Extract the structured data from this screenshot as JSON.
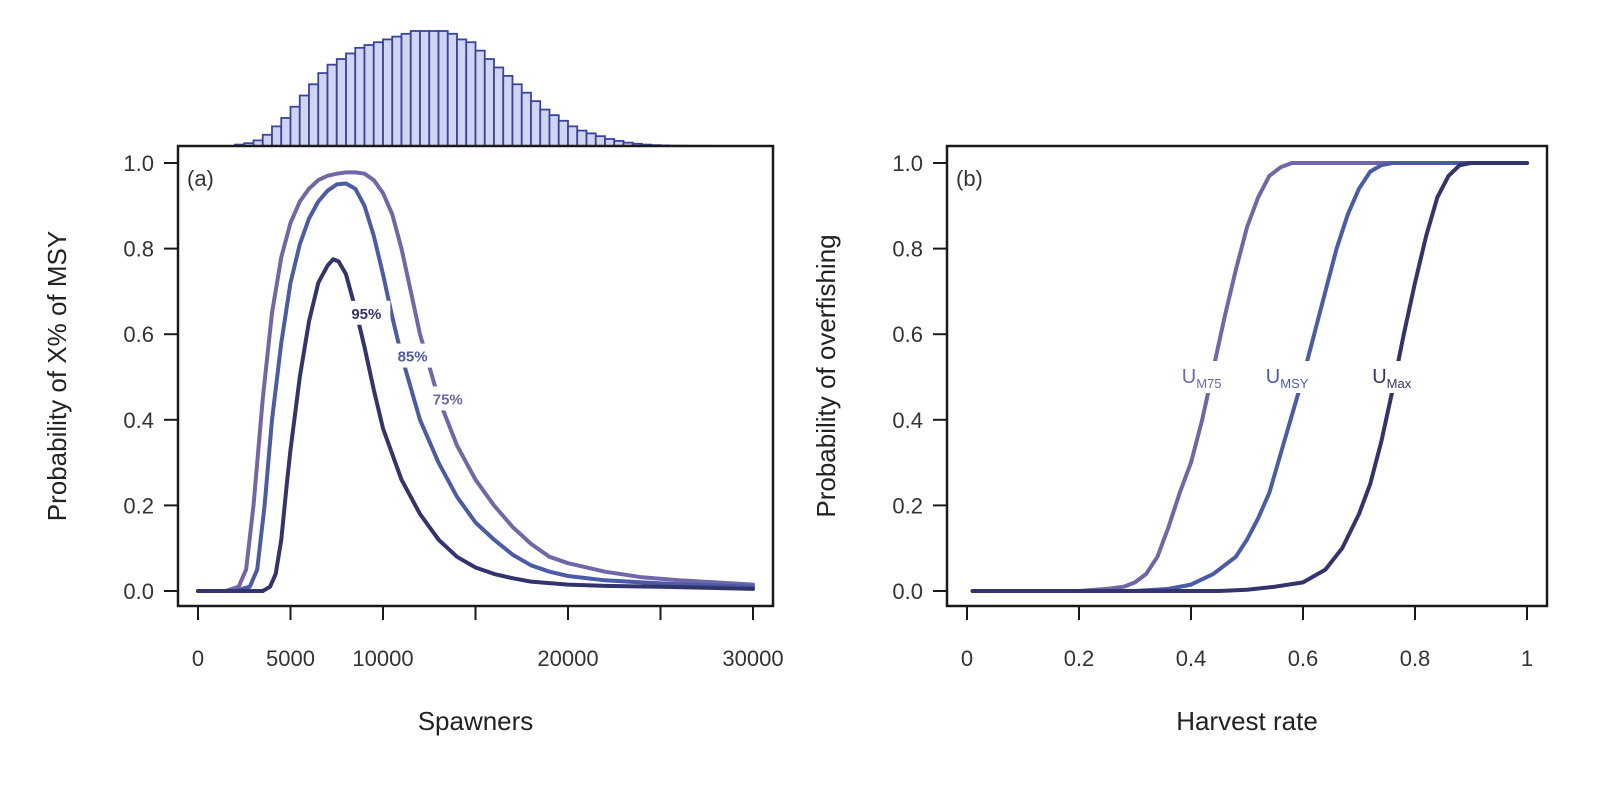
{
  "colors": {
    "c95": "#33336e",
    "c85": "#4a5ba8",
    "c75": "#7266a9",
    "hist_fill": "#cfd5ef",
    "hist_stroke": "#3a44a0",
    "frame": "#1a1a1a"
  },
  "chart_data": [
    {
      "type": "line",
      "panel": "(a)",
      "xlabel": "Spawners",
      "ylabel": "Probability of X% of MSY",
      "xlim": [
        0,
        30000
      ],
      "ylim": [
        0,
        1
      ],
      "xticks": [
        0,
        5000,
        10000,
        15000,
        20000,
        25000,
        30000
      ],
      "xtick_labels": [
        "0",
        "5000",
        "10000",
        "",
        "20000",
        "",
        "30000"
      ],
      "yticks": [
        0,
        0.2,
        0.4,
        0.6,
        0.8,
        1.0
      ],
      "ytick_labels": [
        "0.0",
        "0.2",
        "0.4",
        "0.6",
        "0.8",
        "1.0"
      ],
      "series": [
        {
          "name": "75%",
          "color_key": "c75",
          "x": [
            0,
            1500,
            2200,
            2600,
            3000,
            3500,
            4000,
            4500,
            5000,
            5500,
            6000,
            6500,
            7000,
            7500,
            8000,
            8500,
            9000,
            9500,
            10000,
            10500,
            11000,
            11500,
            12000,
            13000,
            14000,
            15000,
            16000,
            17000,
            18000,
            19000,
            20000,
            22000,
            24000,
            26000,
            28000,
            30000
          ],
          "y": [
            0,
            0,
            0.01,
            0.05,
            0.2,
            0.45,
            0.65,
            0.78,
            0.86,
            0.91,
            0.94,
            0.96,
            0.97,
            0.975,
            0.978,
            0.978,
            0.975,
            0.96,
            0.93,
            0.88,
            0.8,
            0.7,
            0.6,
            0.45,
            0.34,
            0.26,
            0.2,
            0.15,
            0.11,
            0.08,
            0.065,
            0.045,
            0.032,
            0.025,
            0.02,
            0.015
          ]
        },
        {
          "name": "85%",
          "color_key": "c85",
          "x": [
            0,
            2000,
            2800,
            3200,
            3600,
            4000,
            4500,
            5000,
            5500,
            6000,
            6500,
            7000,
            7500,
            8000,
            8500,
            9000,
            9500,
            10000,
            10500,
            11000,
            12000,
            13000,
            14000,
            15000,
            16000,
            17000,
            18000,
            19000,
            20000,
            22000,
            24000,
            26000,
            28000,
            30000
          ],
          "y": [
            0,
            0,
            0.01,
            0.05,
            0.2,
            0.4,
            0.58,
            0.72,
            0.81,
            0.87,
            0.91,
            0.935,
            0.95,
            0.952,
            0.94,
            0.9,
            0.83,
            0.74,
            0.64,
            0.55,
            0.4,
            0.3,
            0.22,
            0.16,
            0.12,
            0.085,
            0.06,
            0.045,
            0.035,
            0.025,
            0.02,
            0.016,
            0.013,
            0.01
          ]
        },
        {
          "name": "95%",
          "color_key": "c95",
          "x": [
            0,
            3500,
            3900,
            4200,
            4500,
            4800,
            5000,
            5500,
            6000,
            6500,
            7000,
            7300,
            7600,
            8000,
            8500,
            9000,
            9500,
            10000,
            11000,
            12000,
            13000,
            14000,
            15000,
            16000,
            17000,
            18000,
            20000,
            22000,
            25000,
            28000,
            30000
          ],
          "y": [
            0,
            0,
            0.01,
            0.04,
            0.12,
            0.25,
            0.33,
            0.5,
            0.63,
            0.72,
            0.76,
            0.775,
            0.77,
            0.74,
            0.66,
            0.57,
            0.47,
            0.38,
            0.26,
            0.18,
            0.12,
            0.08,
            0.055,
            0.04,
            0.03,
            0.022,
            0.015,
            0.012,
            0.01,
            0.007,
            0.005
          ]
        }
      ],
      "annotations": [
        {
          "text": "95%",
          "x": 9100,
          "y": 0.65,
          "color_key": "c95"
        },
        {
          "text": "85%",
          "x": 11600,
          "y": 0.55,
          "color_key": "c85"
        },
        {
          "text": "75%",
          "x": 13500,
          "y": 0.45,
          "color_key": "c75"
        }
      ]
    },
    {
      "type": "bar",
      "role": "marginal-histogram",
      "description_axis": "Spawners",
      "bin_width": 500,
      "bin_start": 0,
      "xlim": [
        0,
        30000
      ],
      "values": [
        0,
        0,
        0,
        0,
        0.5,
        1,
        2,
        4,
        7,
        10,
        14,
        18,
        22,
        26,
        29,
        31,
        33,
        35,
        36,
        37,
        38,
        39,
        40,
        41,
        41,
        41,
        41,
        40,
        38,
        37,
        34,
        31,
        28,
        25,
        22,
        19,
        16,
        13,
        11,
        9,
        7,
        5.5,
        4.5,
        3.5,
        2.5,
        1.8,
        1.2,
        0.8,
        0.5,
        0.3,
        0.2,
        0.1,
        0.1,
        0.05,
        0.05,
        0,
        0,
        0,
        0,
        0
      ]
    },
    {
      "type": "line",
      "panel": "(b)",
      "xlabel": "Harvest rate",
      "ylabel": "Probability of overfishing",
      "xlim": [
        0,
        1
      ],
      "ylim": [
        0,
        1
      ],
      "xticks": [
        0,
        0.2,
        0.4,
        0.6,
        0.8,
        1
      ],
      "xtick_labels": [
        "0",
        "0.2",
        "0.4",
        "0.6",
        "0.8",
        "1"
      ],
      "yticks": [
        0,
        0.2,
        0.4,
        0.6,
        0.8,
        1.0
      ],
      "ytick_labels": [
        "0.0",
        "0.2",
        "0.4",
        "0.6",
        "0.8",
        "1.0"
      ],
      "series": [
        {
          "name": "U_M75",
          "color_key": "c75",
          "x": [
            0.01,
            0.2,
            0.25,
            0.28,
            0.3,
            0.32,
            0.34,
            0.36,
            0.38,
            0.4,
            0.42,
            0.44,
            0.46,
            0.48,
            0.5,
            0.52,
            0.54,
            0.56,
            0.58,
            0.6,
            1.0
          ],
          "y": [
            0,
            0,
            0.005,
            0.01,
            0.02,
            0.04,
            0.08,
            0.15,
            0.23,
            0.3,
            0.4,
            0.52,
            0.64,
            0.75,
            0.85,
            0.92,
            0.97,
            0.99,
            1,
            1,
            1
          ]
        },
        {
          "name": "U_MSY",
          "color_key": "c85",
          "x": [
            0.01,
            0.3,
            0.36,
            0.4,
            0.44,
            0.48,
            0.5,
            0.52,
            0.54,
            0.56,
            0.58,
            0.6,
            0.62,
            0.64,
            0.66,
            0.68,
            0.7,
            0.72,
            0.74,
            0.76,
            0.78,
            1.0
          ],
          "y": [
            0,
            0,
            0.005,
            0.015,
            0.04,
            0.08,
            0.12,
            0.17,
            0.23,
            0.32,
            0.41,
            0.5,
            0.6,
            0.7,
            0.8,
            0.88,
            0.94,
            0.98,
            0.995,
            1,
            1,
            1
          ]
        },
        {
          "name": "U_Max",
          "color_key": "c95",
          "x": [
            0.01,
            0.45,
            0.5,
            0.55,
            0.6,
            0.64,
            0.67,
            0.7,
            0.72,
            0.74,
            0.76,
            0.78,
            0.8,
            0.82,
            0.84,
            0.86,
            0.88,
            0.9,
            1.0
          ],
          "y": [
            0,
            0,
            0.003,
            0.01,
            0.02,
            0.05,
            0.1,
            0.18,
            0.25,
            0.35,
            0.47,
            0.6,
            0.72,
            0.83,
            0.92,
            0.97,
            0.995,
            1,
            1
          ]
        }
      ],
      "annotations": [
        {
          "main": "U",
          "sub": "M75",
          "x": 0.43,
          "y": 0.5,
          "color_key": "c75"
        },
        {
          "main": "U",
          "sub": "MSY",
          "x": 0.58,
          "y": 0.5,
          "color_key": "c85"
        },
        {
          "main": "U",
          "sub": "Max",
          "x": 0.77,
          "y": 0.5,
          "color_key": "c95"
        }
      ]
    }
  ]
}
